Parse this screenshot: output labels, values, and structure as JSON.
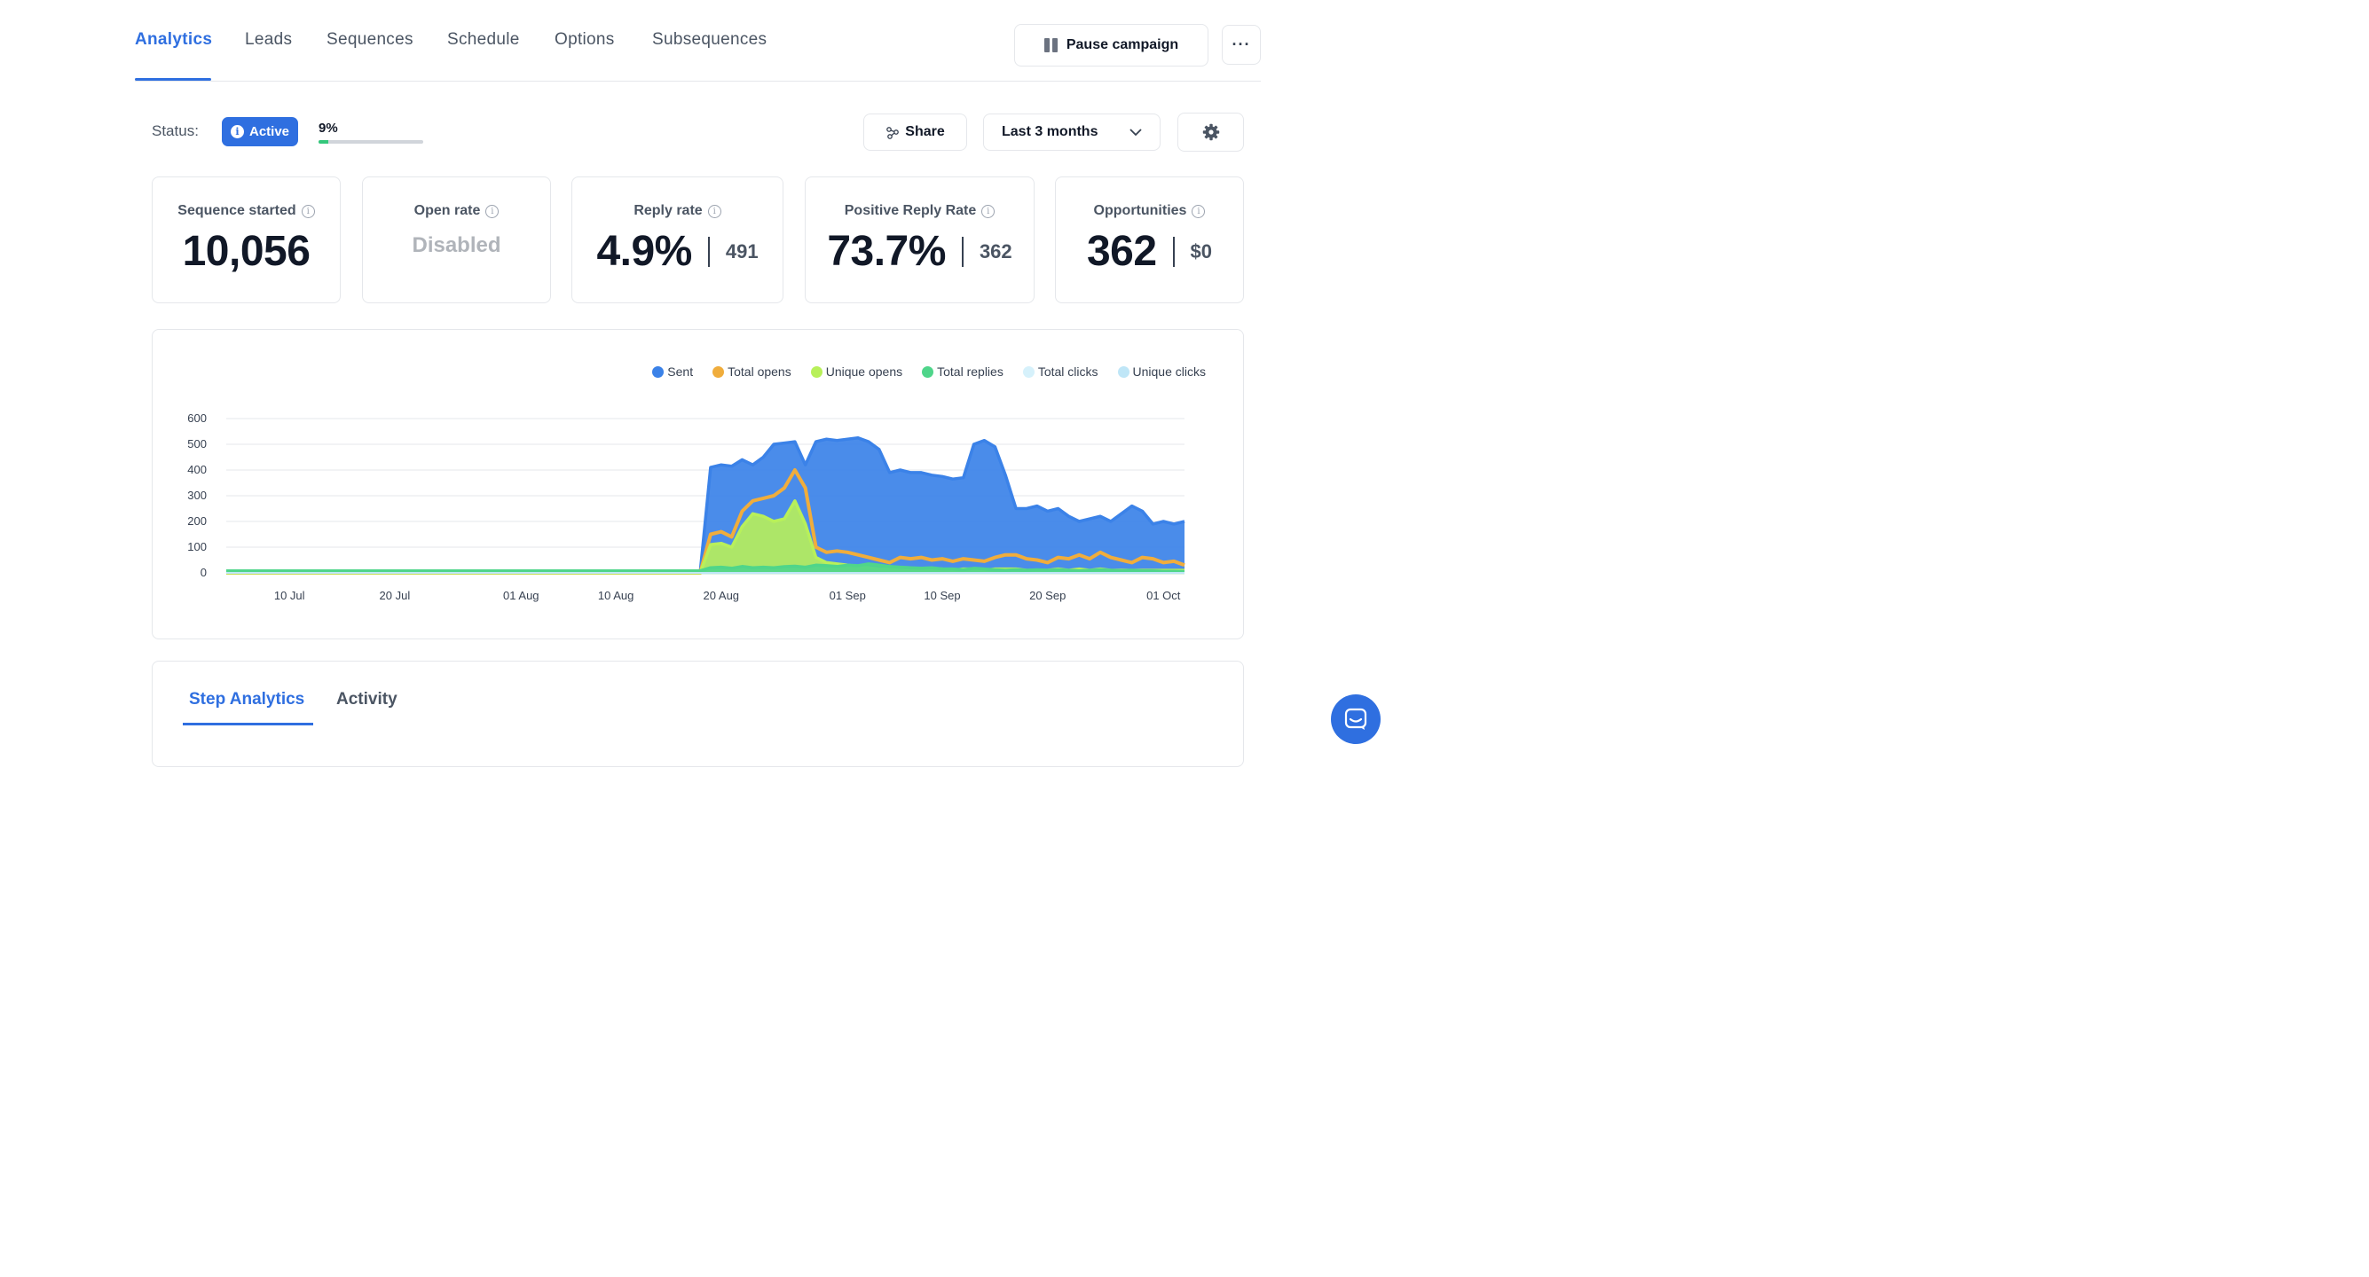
{
  "nav": {
    "tabs": [
      "Analytics",
      "Leads",
      "Sequences",
      "Schedule",
      "Options",
      "Subsequences"
    ],
    "active": "Analytics",
    "pause_label": "Pause campaign",
    "more_label": "···"
  },
  "status": {
    "label": "Status:",
    "badge": "Active",
    "progress_text": "9%",
    "progress_value": 0.09
  },
  "toolbar": {
    "share_label": "Share",
    "range_label": "Last 3 months"
  },
  "stats": {
    "sequence_started": {
      "label": "Sequence started",
      "value": "10,056"
    },
    "open_rate": {
      "label": "Open rate",
      "value": "Disabled"
    },
    "reply_rate": {
      "label": "Reply rate",
      "value": "4.9%",
      "sub": "491"
    },
    "positive_reply_rate": {
      "label": "Positive Reply Rate",
      "value": "73.7%",
      "sub": "362"
    },
    "opportunities": {
      "label": "Opportunities",
      "value": "362",
      "sub": "$0"
    }
  },
  "chart_data": {
    "type": "area",
    "x_ticks": [
      "10 Jul",
      "20 Jul",
      "01 Aug",
      "10 Aug",
      "20 Aug",
      "01 Sep",
      "10 Sep",
      "20 Sep",
      "01 Oct"
    ],
    "y_ticks": [
      0,
      100,
      200,
      300,
      400,
      500,
      600
    ],
    "ylim": [
      0,
      600
    ],
    "xlim": [
      "04 Jul",
      "03 Oct"
    ],
    "series": [
      {
        "name": "Sent",
        "color": "#3b82e8",
        "x": [
          "04 Jul",
          "18 Aug",
          "19 Aug",
          "20 Aug",
          "21 Aug",
          "22 Aug",
          "23 Aug",
          "24 Aug",
          "25 Aug",
          "26 Aug",
          "27 Aug",
          "28 Aug",
          "29 Aug",
          "30 Aug",
          "31 Aug",
          "01 Sep",
          "02 Sep",
          "03 Sep",
          "04 Sep",
          "05 Sep",
          "06 Sep",
          "07 Sep",
          "08 Sep",
          "09 Sep",
          "10 Sep",
          "11 Sep",
          "12 Sep",
          "13 Sep",
          "14 Sep",
          "15 Sep",
          "16 Sep",
          "17 Sep",
          "18 Sep",
          "19 Sep",
          "20 Sep",
          "21 Sep",
          "22 Sep",
          "23 Sep",
          "24 Sep",
          "25 Sep",
          "26 Sep",
          "27 Sep",
          "28 Sep",
          "29 Sep",
          "30 Sep",
          "01 Oct",
          "02 Oct",
          "03 Oct"
        ],
        "values": [
          0,
          0,
          410,
          420,
          415,
          440,
          420,
          450,
          500,
          505,
          510,
          420,
          510,
          520,
          515,
          520,
          525,
          510,
          480,
          390,
          400,
          390,
          390,
          380,
          375,
          365,
          370,
          500,
          515,
          490,
          380,
          250,
          250,
          260,
          240,
          250,
          220,
          200,
          210,
          220,
          200,
          230,
          260,
          240,
          190,
          200,
          190,
          200
        ]
      },
      {
        "name": "Total opens",
        "color": "#f0ad3c",
        "x": [
          "04 Jul",
          "18 Aug",
          "19 Aug",
          "20 Aug",
          "21 Aug",
          "22 Aug",
          "23 Aug",
          "24 Aug",
          "25 Aug",
          "26 Aug",
          "27 Aug",
          "28 Aug",
          "29 Aug",
          "30 Aug",
          "31 Aug",
          "01 Sep",
          "02 Sep",
          "03 Sep",
          "04 Sep",
          "05 Sep",
          "06 Sep",
          "07 Sep",
          "08 Sep",
          "09 Sep",
          "10 Sep",
          "11 Sep",
          "12 Sep",
          "13 Sep",
          "14 Sep",
          "15 Sep",
          "16 Sep",
          "17 Sep",
          "18 Sep",
          "19 Sep",
          "20 Sep",
          "21 Sep",
          "22 Sep",
          "23 Sep",
          "24 Sep",
          "25 Sep",
          "26 Sep",
          "27 Sep",
          "28 Sep",
          "29 Sep",
          "30 Sep",
          "01 Oct",
          "02 Oct",
          "03 Oct"
        ],
        "values": [
          0,
          0,
          150,
          160,
          140,
          240,
          280,
          290,
          300,
          330,
          400,
          330,
          100,
          80,
          85,
          80,
          70,
          60,
          50,
          40,
          60,
          55,
          60,
          50,
          55,
          45,
          55,
          50,
          45,
          60,
          70,
          70,
          55,
          50,
          40,
          60,
          55,
          70,
          55,
          80,
          60,
          50,
          40,
          60,
          55,
          40,
          45,
          30
        ]
      },
      {
        "name": "Unique opens",
        "color": "#b8f05a",
        "x": [
          "04 Jul",
          "18 Aug",
          "19 Aug",
          "20 Aug",
          "21 Aug",
          "22 Aug",
          "23 Aug",
          "24 Aug",
          "25 Aug",
          "26 Aug",
          "27 Aug",
          "28 Aug",
          "29 Aug",
          "30 Aug",
          "31 Aug",
          "01 Sep",
          "02 Sep",
          "03 Sep",
          "04 Sep",
          "05 Sep",
          "06 Sep",
          "07 Sep",
          "08 Sep",
          "09 Sep",
          "10 Sep",
          "11 Sep",
          "12 Sep",
          "13 Sep",
          "14 Sep",
          "15 Sep",
          "16 Sep",
          "17 Sep",
          "18 Sep",
          "19 Sep",
          "20 Sep",
          "21 Sep",
          "22 Sep",
          "23 Sep",
          "24 Sep",
          "25 Sep",
          "26 Sep",
          "27 Sep",
          "28 Sep",
          "29 Sep",
          "30 Sep",
          "01 Oct",
          "02 Oct",
          "03 Oct"
        ],
        "values": [
          0,
          0,
          110,
          115,
          100,
          180,
          230,
          220,
          200,
          210,
          280,
          190,
          60,
          40,
          35,
          30,
          25,
          20,
          15,
          15,
          20,
          15,
          15,
          15,
          15,
          10,
          15,
          15,
          10,
          15,
          15,
          15,
          10,
          10,
          10,
          15,
          10,
          15,
          10,
          15,
          10,
          10,
          10,
          10,
          10,
          10,
          10,
          10
        ]
      },
      {
        "name": "Total replies",
        "color": "#4fd58a",
        "x": [
          "04 Jul",
          "18 Aug",
          "19 Aug",
          "20 Aug",
          "21 Aug",
          "22 Aug",
          "23 Aug",
          "24 Aug",
          "25 Aug",
          "26 Aug",
          "27 Aug",
          "28 Aug",
          "29 Aug",
          "30 Aug",
          "31 Aug",
          "01 Sep",
          "02 Sep",
          "03 Sep",
          "04 Sep",
          "05 Sep",
          "06 Sep",
          "07 Sep",
          "08 Sep",
          "09 Sep",
          "10 Sep",
          "11 Sep",
          "12 Sep",
          "13 Sep",
          "14 Sep",
          "15 Sep",
          "16 Sep",
          "17 Sep",
          "18 Sep",
          "19 Sep",
          "20 Sep",
          "21 Sep",
          "22 Sep",
          "23 Sep",
          "24 Sep",
          "25 Sep",
          "26 Sep",
          "27 Sep",
          "28 Sep",
          "29 Sep",
          "30 Sep",
          "01 Oct",
          "02 Oct",
          "03 Oct"
        ],
        "values": [
          8,
          8,
          20,
          22,
          18,
          25,
          20,
          22,
          20,
          24,
          26,
          22,
          30,
          28,
          25,
          30,
          28,
          35,
          30,
          25,
          22,
          20,
          18,
          20,
          15,
          15,
          12,
          18,
          15,
          12,
          10,
          12,
          10,
          12,
          10,
          12,
          10,
          8,
          10,
          12,
          10,
          8,
          10,
          8,
          8,
          6,
          6,
          5
        ]
      },
      {
        "name": "Total clicks",
        "color": "#d6f1fb",
        "x": [
          "04 Jul",
          "03 Oct"
        ],
        "values": [
          0,
          0
        ]
      },
      {
        "name": "Unique clicks",
        "color": "#bfe6f7",
        "x": [
          "04 Jul",
          "03 Oct"
        ],
        "values": [
          0,
          0
        ]
      }
    ]
  },
  "bottom_tabs": [
    "Step Analytics",
    "Activity"
  ]
}
